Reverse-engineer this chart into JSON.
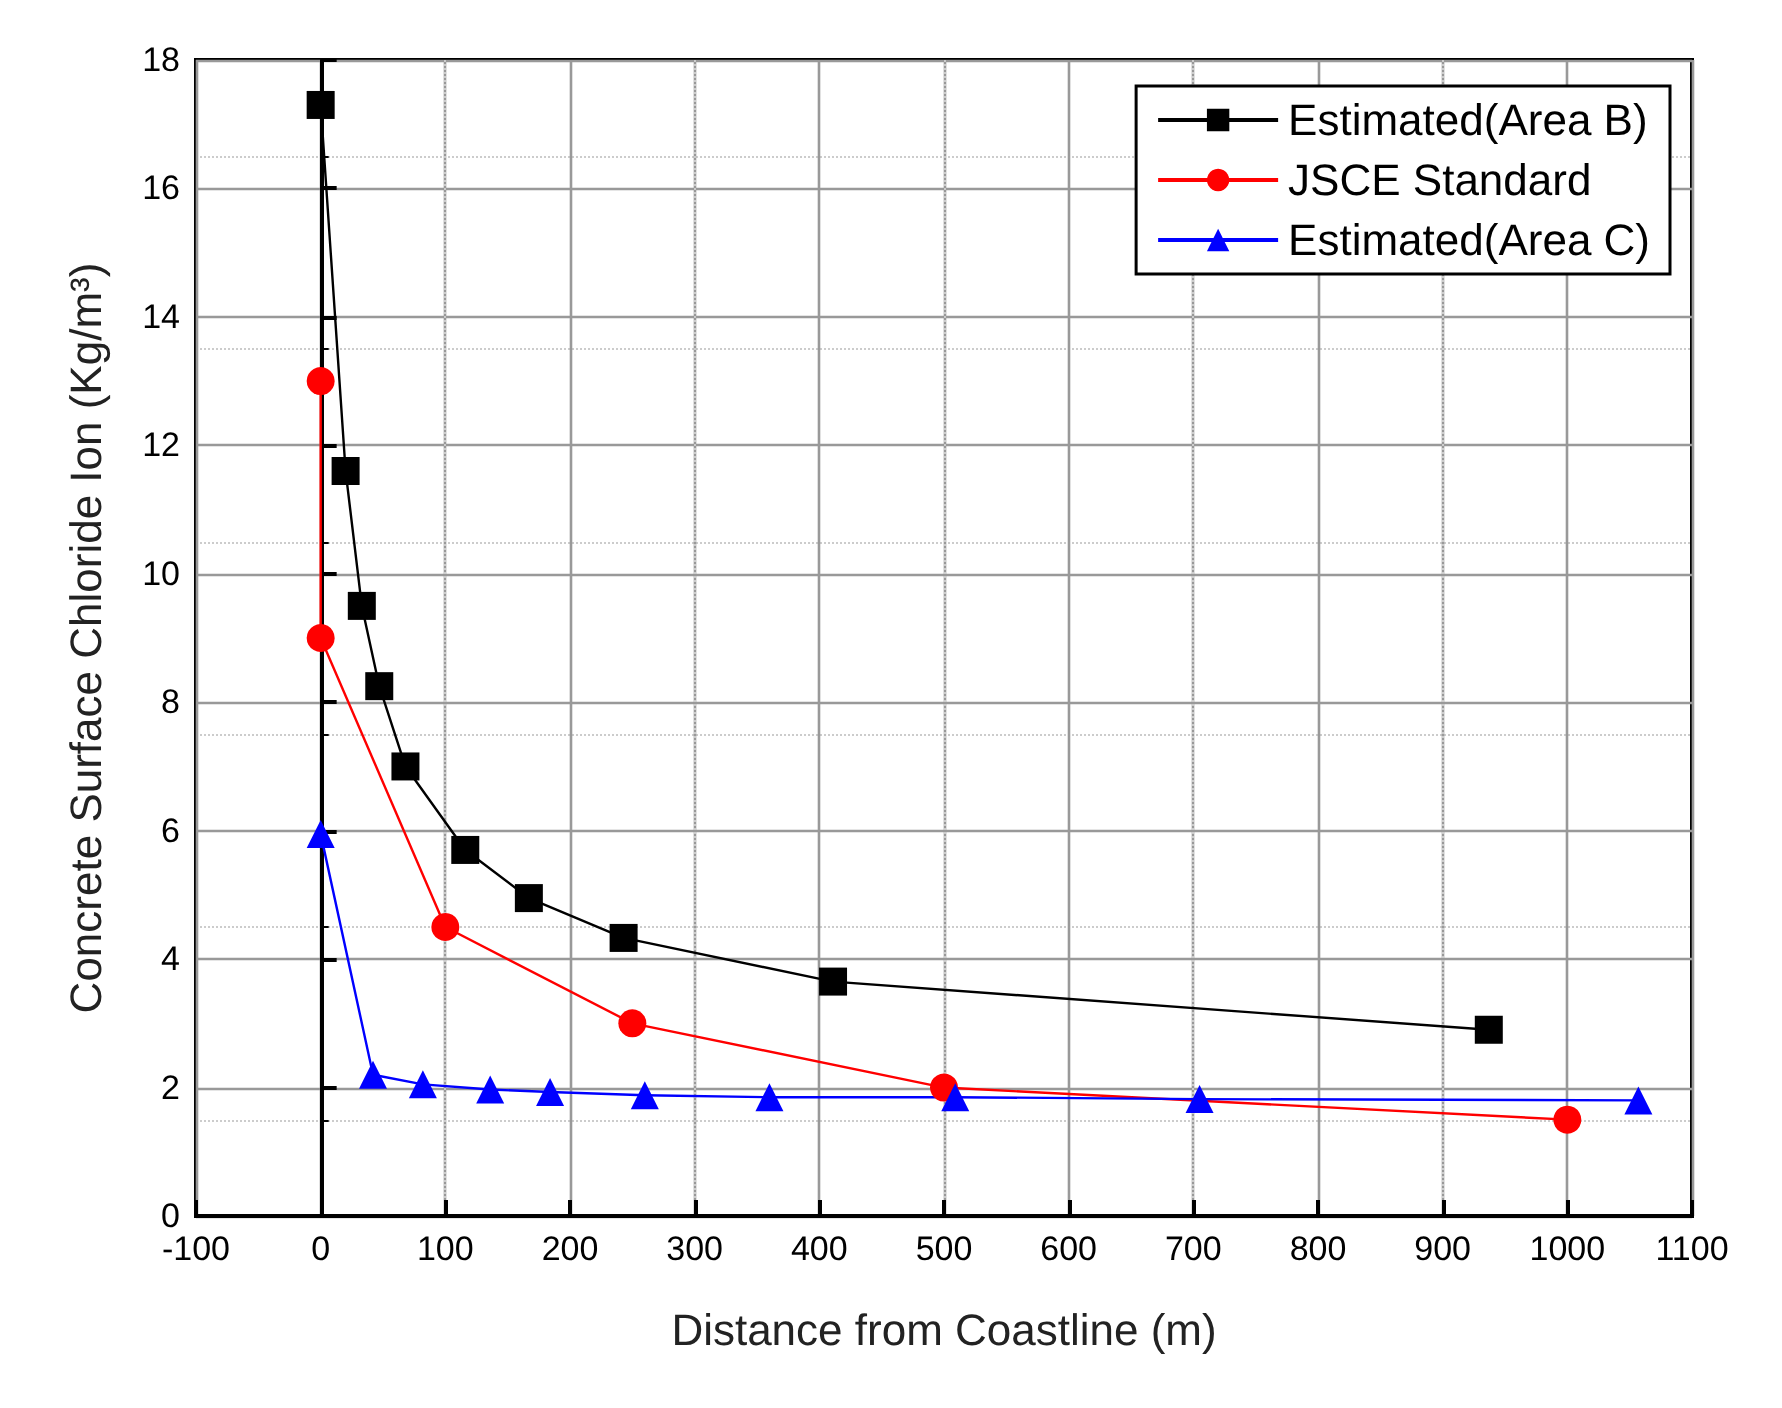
{
  "chart_data": {
    "type": "line",
    "xlabel": "Distance from Coastline (m)",
    "ylabel": "Concrete Surface Chloride Ion (Kg/m³)",
    "xlim": [
      -100,
      1100
    ],
    "xticks": [
      -100,
      0,
      100,
      200,
      300,
      400,
      500,
      600,
      700,
      800,
      900,
      1000,
      1100
    ],
    "ylim": [
      0,
      18
    ],
    "yticks": [
      0,
      2,
      4,
      6,
      8,
      10,
      12,
      14,
      16,
      18
    ],
    "grid": true,
    "legend": "top right",
    "series": [
      {
        "name": "Estimated(Area B)",
        "color": "#000000",
        "marker": "square",
        "x": [
          0,
          20,
          33,
          47,
          68,
          116,
          167,
          243,
          411,
          937
        ],
        "values": [
          17.3,
          11.6,
          9.5,
          8.25,
          7.0,
          5.7,
          4.95,
          4.33,
          3.65,
          2.9
        ]
      },
      {
        "name": "JSCE Standard",
        "color": "#ff0000",
        "marker": "circle",
        "x": [
          0,
          0,
          100,
          250,
          500,
          1000
        ],
        "values": [
          13,
          9,
          4.5,
          3,
          2,
          1.5
        ]
      },
      {
        "name": "Estimated(Area C)",
        "color": "#0000ff",
        "marker": "triangle",
        "x": [
          0,
          42,
          82,
          136,
          184,
          260,
          360,
          509,
          705,
          1057
        ],
        "values": [
          5.95,
          2.2,
          2.05,
          1.97,
          1.93,
          1.88,
          1.85,
          1.85,
          1.82,
          1.8
        ]
      }
    ]
  }
}
